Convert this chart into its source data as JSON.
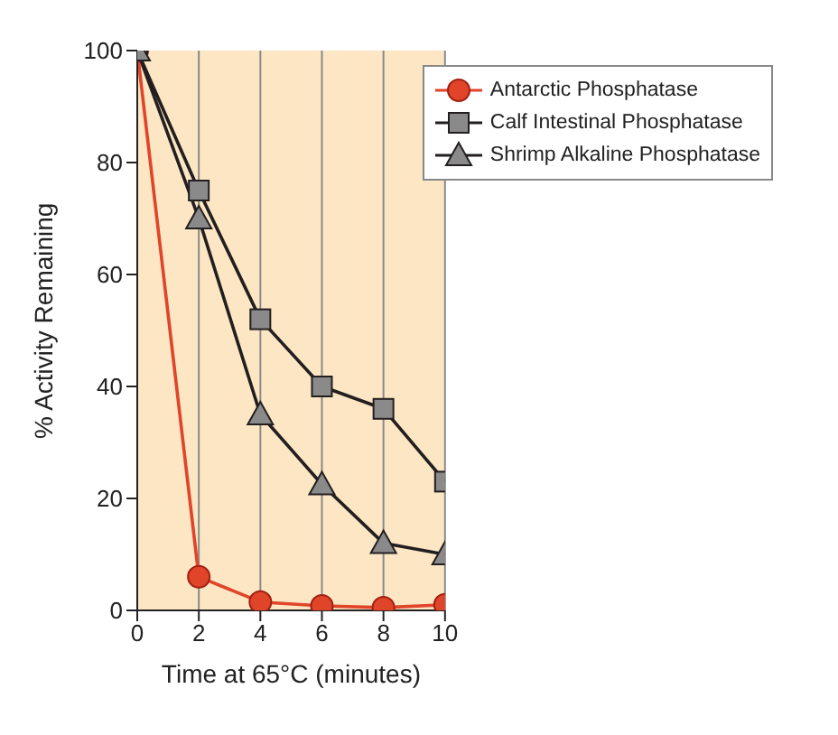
{
  "chart_data": {
    "type": "line",
    "xlabel": "Time at 65°C (minutes)",
    "ylabel": "% Activity Remaining",
    "x": [
      0,
      2,
      4,
      6,
      8,
      10
    ],
    "xlim": [
      0,
      10
    ],
    "xticks": [
      0,
      2,
      4,
      6,
      8,
      10
    ],
    "ylim": [
      0,
      100
    ],
    "yticks": [
      0,
      20,
      40,
      60,
      80,
      100
    ],
    "grid": "x",
    "legend": "top right",
    "series": [
      {
        "name": "Antarctic Phosphatase",
        "color": "#e0452a",
        "marker": "circle",
        "values": [
          100,
          6,
          1.5,
          0.8,
          0.5,
          1
        ]
      },
      {
        "name": "Calf Intestinal Phosphatase",
        "color": "#231f20",
        "marker": "square",
        "values": [
          100,
          75,
          52,
          40,
          36,
          23
        ]
      },
      {
        "name": "Shrimp Alkaline Phosphatase",
        "color": "#231f20",
        "marker": "triangle",
        "values": [
          100,
          70,
          35,
          22.5,
          12,
          10
        ]
      }
    ]
  }
}
